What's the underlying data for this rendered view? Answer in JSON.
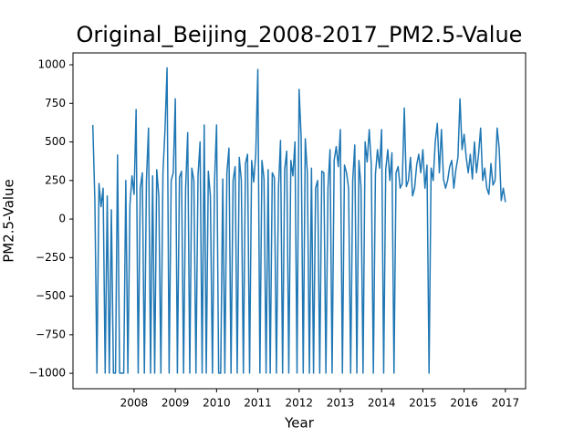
{
  "chart_data": {
    "type": "line",
    "title": "Original_Beijing_2008-2017_PM2.5-Value",
    "x_label": "Year",
    "y_label": "PM2.5-Value",
    "x": [
      2007.0,
      2007.05,
      2007.1,
      2007.15,
      2007.2,
      2007.25,
      2007.3,
      2007.35,
      2007.4,
      2007.45,
      2007.5,
      2007.55,
      2007.6,
      2007.65,
      2007.7,
      2007.75,
      2007.8,
      2007.85,
      2007.9,
      2007.95,
      2008.0,
      2008.05,
      2008.1,
      2008.15,
      2008.2,
      2008.25,
      2008.3,
      2008.35,
      2008.4,
      2008.45,
      2008.5,
      2008.55,
      2008.6,
      2008.65,
      2008.7,
      2008.75,
      2008.8,
      2008.85,
      2008.9,
      2008.95,
      2009.0,
      2009.05,
      2009.1,
      2009.15,
      2009.2,
      2009.25,
      2009.3,
      2009.35,
      2009.4,
      2009.45,
      2009.5,
      2009.55,
      2009.6,
      2009.65,
      2009.7,
      2009.75,
      2009.8,
      2009.85,
      2009.9,
      2009.95,
      2010.0,
      2010.05,
      2010.1,
      2010.15,
      2010.2,
      2010.25,
      2010.3,
      2010.35,
      2010.4,
      2010.45,
      2010.5,
      2010.55,
      2010.6,
      2010.65,
      2010.7,
      2010.75,
      2010.8,
      2010.85,
      2010.9,
      2010.95,
      2011.0,
      2011.05,
      2011.1,
      2011.15,
      2011.2,
      2011.25,
      2011.3,
      2011.35,
      2011.4,
      2011.45,
      2011.5,
      2011.55,
      2011.6,
      2011.65,
      2011.7,
      2011.75,
      2011.8,
      2011.85,
      2011.9,
      2011.95,
      2012.0,
      2012.05,
      2012.1,
      2012.15,
      2012.2,
      2012.25,
      2012.3,
      2012.35,
      2012.4,
      2012.45,
      2012.5,
      2012.55,
      2012.6,
      2012.65,
      2012.7,
      2012.75,
      2012.8,
      2012.85,
      2012.9,
      2012.95,
      2013.0,
      2013.05,
      2013.1,
      2013.15,
      2013.2,
      2013.25,
      2013.3,
      2013.35,
      2013.4,
      2013.45,
      2013.5,
      2013.55,
      2013.6,
      2013.65,
      2013.7,
      2013.75,
      2013.8,
      2013.85,
      2013.9,
      2013.95,
      2014.0,
      2014.05,
      2014.1,
      2014.15,
      2014.2,
      2014.25,
      2014.3,
      2014.35,
      2014.4,
      2014.45,
      2014.5,
      2014.55,
      2014.6,
      2014.65,
      2014.7,
      2014.75,
      2014.8,
      2014.85,
      2014.9,
      2014.95,
      2015.0,
      2015.05,
      2015.1,
      2015.15,
      2015.2,
      2015.25,
      2015.3,
      2015.35,
      2015.4,
      2015.45,
      2015.5,
      2015.55,
      2015.6,
      2015.65,
      2015.7,
      2015.75,
      2015.8,
      2015.85,
      2015.9,
      2015.95,
      2016.0,
      2016.05,
      2016.1,
      2016.15,
      2016.2,
      2016.25,
      2016.3,
      2016.35,
      2016.4,
      2016.45,
      2016.5,
      2016.55,
      2016.6,
      2016.65,
      2016.7,
      2016.75,
      2016.8,
      2016.85,
      2016.9,
      2016.95,
      2017.0
    ],
    "series": [
      {
        "color": "#1f77b4",
        "values": [
          610,
          120,
          -999,
          230,
          80,
          200,
          -999,
          150,
          -999,
          60,
          -999,
          -999,
          415,
          -999,
          -999,
          -999,
          250,
          -999,
          90,
          280,
          160,
          710,
          -999,
          200,
          300,
          -999,
          250,
          590,
          -999,
          280,
          -999,
          320,
          150,
          -999,
          300,
          580,
          980,
          -999,
          250,
          300,
          780,
          -999,
          270,
          310,
          -999,
          200,
          560,
          -999,
          330,
          250,
          -999,
          280,
          500,
          -999,
          610,
          -999,
          310,
          150,
          -999,
          240,
          610,
          -999,
          -999,
          260,
          -999,
          300,
          460,
          -999,
          250,
          340,
          -999,
          400,
          250,
          -999,
          360,
          420,
          -999,
          380,
          240,
          420,
          970,
          -999,
          380,
          260,
          -999,
          320,
          -999,
          300,
          270,
          -999,
          200,
          510,
          -999,
          320,
          440,
          -999,
          380,
          280,
          500,
          -999,
          840,
          530,
          -999,
          520,
          300,
          -999,
          330,
          -999,
          200,
          250,
          -999,
          310,
          300,
          -999,
          200,
          450,
          -999,
          380,
          470,
          340,
          580,
          -999,
          350,
          300,
          200,
          -999,
          250,
          480,
          -999,
          380,
          210,
          -999,
          500,
          370,
          580,
          350,
          -999,
          290,
          450,
          330,
          580,
          -999,
          320,
          450,
          250,
          430,
          -999,
          300,
          340,
          200,
          230,
          720,
          210,
          250,
          400,
          150,
          200,
          350,
          420,
          300,
          450,
          200,
          350,
          -999,
          330,
          250,
          500,
          620,
          300,
          580,
          260,
          200,
          250,
          340,
          380,
          200,
          320,
          400,
          780,
          450,
          550,
          400,
          300,
          420,
          260,
          500,
          300,
          420,
          590,
          250,
          330,
          200,
          160,
          360,
          220,
          250,
          590,
          460,
          120,
          200,
          110
        ]
      }
    ],
    "xlim": [
      2006.52,
      2017.49
    ],
    "xticks": [
      2008,
      2009,
      2010,
      2011,
      2012,
      2013,
      2014,
      2015,
      2016,
      2017
    ],
    "ylim": [
      -1100,
      1077
    ],
    "yticks": [
      {
        "value": -1000,
        "label": "−1000"
      },
      {
        "value": -750,
        "label": "−750"
      },
      {
        "value": -500,
        "label": "−500"
      },
      {
        "value": -250,
        "label": "−250"
      },
      0,
      250,
      500,
      750,
      1000
    ],
    "grid": false
  }
}
